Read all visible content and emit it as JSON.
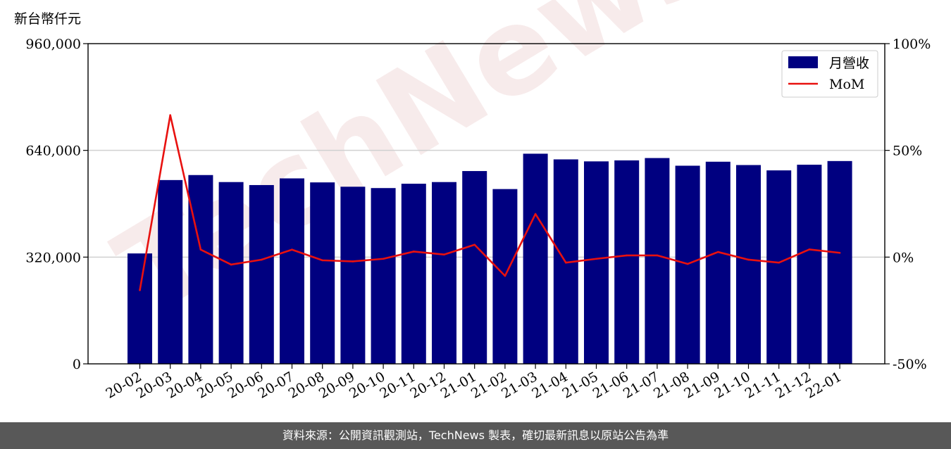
{
  "unit_label": "新台幣仟元",
  "footer_text": "資料來源：公開資訊觀測站，TechNews 製表，確切最新訊息以原站公告為準",
  "watermark": "TechNews",
  "colors": {
    "bar": "#000080",
    "line": "#e8110f",
    "grid": "#d0d0d0",
    "footer_bg": "#585858"
  },
  "chart_data": {
    "type": "bar",
    "categories": [
      "20-02",
      "20-03",
      "20-04",
      "20-05",
      "20-06",
      "20-07",
      "20-08",
      "20-09",
      "20-10",
      "20-11",
      "20-12",
      "21-01",
      "21-02",
      "21-03",
      "21-04",
      "21-05",
      "21-06",
      "21-07",
      "21-08",
      "21-09",
      "21-10",
      "21-11",
      "21-12",
      "22-01"
    ],
    "series": [
      {
        "name": "月營收",
        "type": "bar",
        "axis": "left",
        "values": [
          331000,
          551000,
          566000,
          545000,
          536000,
          556000,
          544000,
          531000,
          527000,
          540000,
          545000,
          578000,
          524000,
          630000,
          613000,
          607000,
          610000,
          617000,
          594000,
          606000,
          596000,
          580000,
          597000,
          608000
        ]
      },
      {
        "name": "MoM",
        "type": "line",
        "axis": "right",
        "values": [
          -15.5,
          66.5,
          3.5,
          -3.5,
          -1.2,
          3.5,
          -1.5,
          -2.0,
          -0.8,
          2.6,
          1.2,
          5.8,
          -8.8,
          20.2,
          -2.6,
          -0.8,
          0.8,
          0.8,
          -3.2,
          2.4,
          -1.2,
          -2.6,
          3.6,
          2.0
        ]
      }
    ],
    "y_left": {
      "ticks": [
        "0",
        "320,000",
        "640,000",
        "960,000"
      ],
      "tick_values": [
        0,
        320000,
        640000,
        960000
      ],
      "ylim": [
        0,
        960000
      ]
    },
    "y_right": {
      "ticks": [
        "-50%",
        "0%",
        "50%",
        "100%"
      ],
      "tick_values": [
        -50,
        0,
        50,
        100
      ],
      "ylim": [
        -50,
        100
      ]
    },
    "grid": true,
    "legend_position": "top-right"
  }
}
